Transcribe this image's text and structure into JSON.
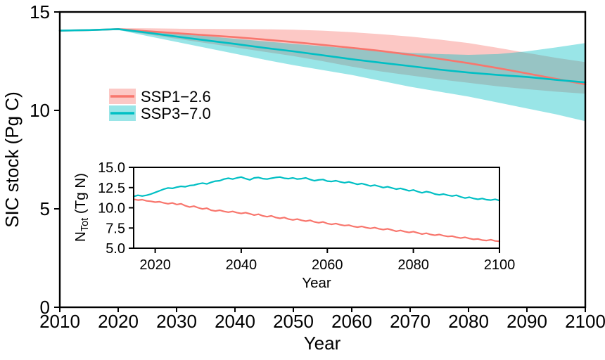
{
  "figure": {
    "legend": {
      "items": [
        {
          "label": "SSP1−2.6",
          "line_color": "#F8766D",
          "band_color": "#F8766D"
        },
        {
          "label": "SSP3−7.0",
          "line_color": "#00BFC4",
          "band_color": "#00BFC4"
        }
      ]
    }
  },
  "chart_data": [
    {
      "id": "main",
      "type": "line",
      "title": "",
      "xlabel": "Year",
      "ylabel": "SIC stock (Pg C)",
      "xlim": [
        2010,
        2100
      ],
      "ylim": [
        0,
        15
      ],
      "grid": false,
      "legend_position": "upper-left-inside",
      "xticks": [
        2010,
        2020,
        2030,
        2040,
        2050,
        2060,
        2070,
        2080,
        2090,
        2100
      ],
      "xtick_labels": [
        "2010",
        "2020",
        "2030",
        "2040",
        "2050",
        "2060",
        "2070",
        "2080",
        "2090",
        "2100"
      ],
      "yticks": [
        0,
        5,
        10,
        15
      ],
      "ytick_labels": [
        "0",
        "5",
        "10",
        "15"
      ],
      "x": [
        2010,
        2015,
        2020,
        2025,
        2030,
        2035,
        2040,
        2045,
        2050,
        2055,
        2060,
        2065,
        2070,
        2075,
        2080,
        2085,
        2090,
        2095,
        2100
      ],
      "band_opacity": 0.4,
      "series": [
        {
          "name": "SSP1−2.6",
          "color": "#F8766D",
          "values": [
            14.05,
            14.08,
            14.13,
            14.02,
            13.92,
            13.82,
            13.72,
            13.6,
            13.47,
            13.33,
            13.18,
            13.02,
            12.83,
            12.62,
            12.4,
            12.15,
            11.88,
            11.6,
            11.32
          ],
          "band_upper": [
            14.05,
            14.1,
            14.18,
            14.17,
            14.15,
            14.14,
            14.13,
            14.12,
            14.1,
            14.05,
            13.97,
            13.87,
            13.75,
            13.6,
            13.42,
            13.18,
            12.92,
            12.67,
            12.45
          ],
          "band_lower": [
            14.05,
            14.06,
            14.09,
            13.86,
            13.64,
            13.42,
            13.2,
            12.98,
            12.76,
            12.5,
            12.22,
            11.98,
            11.78,
            11.58,
            11.4,
            11.22,
            11.08,
            10.95,
            10.85
          ]
        },
        {
          "name": "SSP3−7.0",
          "color": "#00BFC4",
          "values": [
            14.05,
            14.08,
            14.13,
            13.95,
            13.75,
            13.56,
            13.38,
            13.18,
            13.0,
            12.8,
            12.6,
            12.42,
            12.25,
            12.07,
            11.92,
            11.8,
            11.7,
            11.55,
            11.42
          ],
          "band_upper": [
            14.05,
            14.1,
            14.17,
            14.03,
            13.9,
            13.77,
            13.64,
            13.51,
            13.38,
            13.26,
            13.14,
            13.02,
            12.92,
            12.86,
            12.82,
            12.86,
            13.0,
            13.2,
            13.42
          ],
          "band_lower": [
            14.05,
            14.06,
            14.09,
            13.78,
            13.48,
            13.18,
            12.88,
            12.58,
            12.3,
            12.05,
            11.8,
            11.5,
            11.2,
            10.95,
            10.7,
            10.4,
            10.1,
            9.8,
            9.45
          ]
        }
      ]
    },
    {
      "id": "inset",
      "type": "line",
      "title": "",
      "xlabel": "Year",
      "ylabel": "NTot (Tg N)",
      "ylabel_parts": {
        "base": "N",
        "sub": "Tot",
        "rest": " (Tg N)"
      },
      "xlim": [
        2015,
        2100
      ],
      "ylim": [
        5,
        15
      ],
      "grid": false,
      "xticks": [
        2020,
        2040,
        2060,
        2080,
        2100
      ],
      "xtick_labels": [
        "2020",
        "2040",
        "2060",
        "2080",
        "2100"
      ],
      "yticks": [
        5,
        7.5,
        10,
        12.5,
        15
      ],
      "ytick_labels": [
        "5.0",
        "7.5",
        "10.0",
        "12.5",
        "15.0"
      ],
      "x_start": 2015,
      "x_step": 1,
      "series": [
        {
          "name": "SSP1−2.6",
          "color": "#F8766D",
          "values": [
            11.05,
            10.95,
            11.0,
            10.85,
            10.8,
            10.7,
            10.75,
            10.6,
            10.5,
            10.6,
            10.4,
            10.5,
            10.25,
            10.1,
            10.2,
            10.0,
            9.85,
            9.95,
            9.7,
            9.6,
            9.7,
            9.55,
            9.45,
            9.55,
            9.4,
            9.3,
            9.4,
            9.25,
            9.1,
            9.2,
            9.0,
            8.9,
            9.0,
            8.8,
            8.7,
            8.8,
            8.6,
            8.5,
            8.6,
            8.45,
            8.35,
            8.45,
            8.25,
            8.15,
            8.25,
            8.05,
            7.95,
            8.05,
            7.9,
            7.8,
            7.85,
            7.7,
            7.6,
            7.7,
            7.55,
            7.45,
            7.55,
            7.4,
            7.3,
            7.4,
            7.25,
            7.1,
            7.2,
            7.05,
            6.95,
            7.05,
            6.9,
            6.75,
            6.85,
            6.7,
            6.6,
            6.7,
            6.55,
            6.45,
            6.5,
            6.35,
            6.25,
            6.35,
            6.2,
            6.1,
            6.15,
            6.0,
            5.95,
            6.05,
            5.9,
            5.85
          ]
        },
        {
          "name": "SSP3−7.0",
          "color": "#00BFC4",
          "values": [
            11.4,
            11.55,
            11.45,
            11.55,
            11.7,
            11.9,
            12.1,
            12.3,
            12.45,
            12.4,
            12.55,
            12.65,
            12.6,
            12.75,
            12.8,
            12.95,
            13.05,
            12.95,
            13.15,
            13.3,
            13.35,
            13.55,
            13.65,
            13.55,
            13.7,
            13.8,
            13.6,
            13.45,
            13.7,
            13.75,
            13.6,
            13.55,
            13.65,
            13.75,
            13.8,
            13.65,
            13.6,
            13.7,
            13.55,
            13.6,
            13.7,
            13.5,
            13.35,
            13.45,
            13.5,
            13.3,
            13.25,
            13.35,
            13.2,
            13.1,
            13.2,
            13.05,
            12.9,
            13.0,
            12.85,
            12.7,
            12.8,
            12.65,
            12.5,
            12.6,
            12.45,
            12.3,
            12.4,
            12.25,
            12.1,
            12.2,
            12.0,
            11.85,
            12.0,
            11.9,
            11.7,
            11.6,
            11.7,
            11.55,
            11.45,
            11.55,
            11.35,
            11.2,
            11.3,
            11.15,
            11.05,
            11.15,
            11.0,
            10.95,
            11.05,
            10.9
          ]
        }
      ]
    }
  ]
}
